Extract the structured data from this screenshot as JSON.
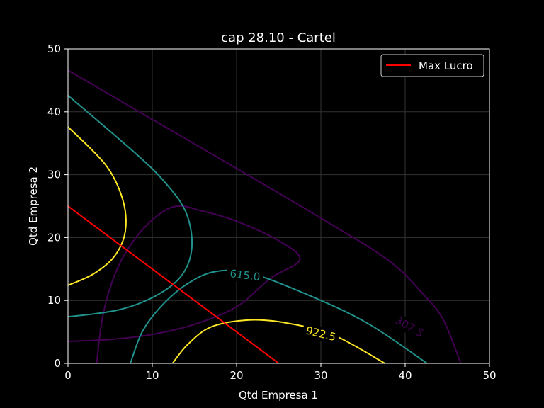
{
  "chart_data": {
    "type": "contour",
    "title": "cap 28.10 - Cartel",
    "xlabel": "Qtd Empresa 1",
    "ylabel": "Qtd Empresa 2",
    "xlim": [
      0,
      50
    ],
    "ylim": [
      0,
      50
    ],
    "xticks": [
      0,
      10,
      20,
      30,
      40,
      50
    ],
    "yticks": [
      0,
      10,
      20,
      30,
      40,
      50
    ],
    "grid": true,
    "legend_position": "top-right",
    "background": "#000000",
    "contours": [
      {
        "level": 307.5,
        "label": "307.5",
        "color": "#440154",
        "paths": [
          [
            [
              0,
              46.6
            ],
            [
              10,
              38.8
            ],
            [
              20,
              31.0
            ],
            [
              30,
              23.1
            ],
            [
              38,
              16.4
            ],
            [
              42,
              11.2
            ],
            [
              44.5,
              7.0
            ],
            [
              46.6,
              0
            ]
          ],
          [
            [
              3.4,
              0
            ],
            [
              4.2,
              8.0
            ],
            [
              6.0,
              15.5
            ],
            [
              9.0,
              21.5
            ],
            [
              12.5,
              24.9
            ],
            [
              16.0,
              24.2
            ],
            [
              20.0,
              22.6
            ],
            [
              25.0,
              19.5
            ],
            [
              27.5,
              16.5
            ],
            [
              24.0,
              13.5
            ],
            [
              20.0,
              9.0
            ],
            [
              15.0,
              6.2
            ],
            [
              10.0,
              4.6
            ],
            [
              5.0,
              3.8
            ],
            [
              0,
              3.5
            ]
          ]
        ],
        "label_pos": [
          40.5,
          5.8
        ],
        "label_rotation": 30
      },
      {
        "level": 615.0,
        "label": "615.0",
        "color": "#21918c",
        "paths": [
          [
            [
              0,
              42.6
            ],
            [
              8,
              33.4
            ],
            [
              11.5,
              28.8
            ],
            [
              14,
              24.0
            ],
            [
              14.7,
              18.5
            ],
            [
              13.5,
              14.0
            ],
            [
              10.5,
              10.8
            ],
            [
              6.0,
              8.5
            ],
            [
              0,
              7.4
            ]
          ],
          [
            [
              7.4,
              0
            ],
            [
              8.8,
              5.0
            ],
            [
              11.0,
              9.0
            ],
            [
              14.0,
              12.5
            ],
            [
              17.5,
              14.6
            ],
            [
              22.0,
              14.2
            ],
            [
              30.0,
              10.0
            ],
            [
              36.0,
              6.0
            ],
            [
              42.6,
              0
            ]
          ]
        ],
        "label_pos": [
          21.0,
          14.0
        ],
        "label_rotation": 7
      },
      {
        "level": 922.5,
        "label": "922.5",
        "color": "#fde725",
        "paths": [
          [
            [
              0,
              37.6
            ],
            [
              4.5,
              31.5
            ],
            [
              6.5,
              26.0
            ],
            [
              6.8,
              21.0
            ],
            [
              5.5,
              17.0
            ],
            [
              3.0,
              14.2
            ],
            [
              0,
              12.4
            ]
          ],
          [
            [
              12.4,
              0
            ],
            [
              14.2,
              3.0
            ],
            [
              17.0,
              5.8
            ],
            [
              21.5,
              6.9
            ],
            [
              26.0,
              6.4
            ],
            [
              31.5,
              4.5
            ],
            [
              37.6,
              0
            ]
          ]
        ],
        "label_pos": [
          30.0,
          4.7
        ],
        "label_rotation": 14
      }
    ],
    "series": [
      {
        "name": "Max Lucro",
        "type": "line",
        "color": "#ff0000",
        "x": [
          0,
          25
        ],
        "y": [
          25,
          0
        ]
      }
    ]
  }
}
